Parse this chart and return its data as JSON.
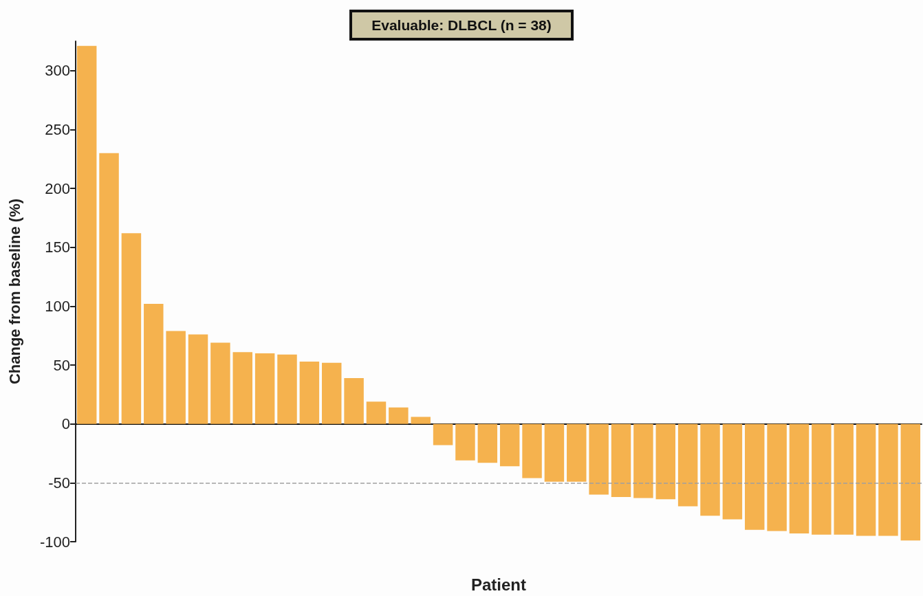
{
  "chart_data": {
    "type": "bar",
    "title": "Evaluable: DLBCL (n = 38)",
    "xlabel": "Patient",
    "ylabel": "Change from baseline (%)",
    "categories": [
      null,
      null,
      null,
      null,
      null,
      null,
      null,
      null,
      null,
      null,
      null,
      null,
      null,
      null,
      null,
      null,
      null,
      null,
      null,
      null,
      null,
      null,
      null,
      null,
      null,
      null,
      null,
      null,
      null,
      null,
      null,
      null,
      null,
      null,
      null,
      null,
      null,
      null
    ],
    "values": [
      321,
      230,
      162,
      102,
      79,
      76,
      69,
      61,
      60,
      59,
      53,
      52,
      39,
      19,
      14,
      6,
      -18,
      -31,
      -33,
      -36,
      -46,
      -49,
      -49,
      -60,
      -62,
      -63,
      -64,
      -70,
      -78,
      -81,
      -90,
      -91,
      -93,
      -94,
      -94,
      -95,
      -95,
      -99
    ],
    "color": "#f5b24e",
    "ylim": [
      -100,
      325
    ],
    "yticks": [
      -100,
      -50,
      0,
      50,
      100,
      150,
      200,
      250,
      300
    ],
    "grid": false,
    "ref_lines": [
      {
        "axis": "y",
        "value": -50,
        "label": null,
        "color": "#a0a0a0",
        "line_style": "dashed"
      }
    ]
  }
}
